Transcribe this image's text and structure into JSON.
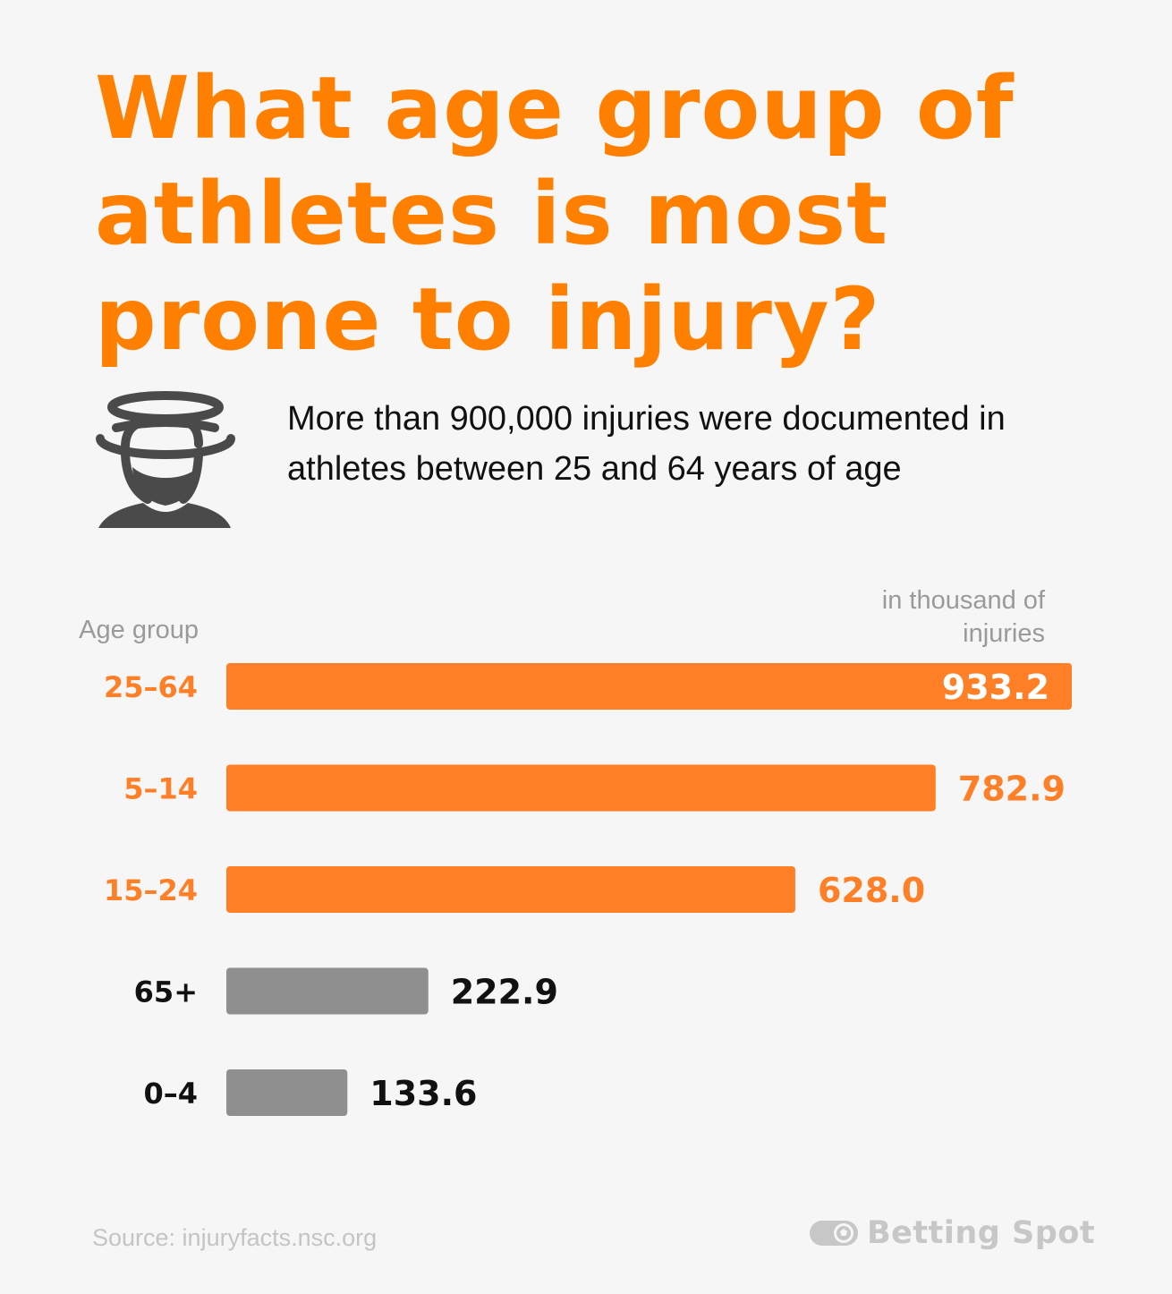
{
  "header": {
    "title": "What age group of athletes is most prone to injury?",
    "subtitle": "More than 900,000 injuries were documented in athletes between 25 and 64 years of age"
  },
  "icons": {
    "head": "dizzy-head-icon",
    "brand": "football-ticket-icon"
  },
  "colors": {
    "highlight": "#ff7f27",
    "title": "#ff8000",
    "muted": "#8f8f8f",
    "background": "#f6f6f6"
  },
  "chart_data": {
    "type": "bar",
    "orientation": "horizontal",
    "xlabel": "in thousand of injuries",
    "ylabel": "Age group",
    "categories": [
      "25–64",
      "5–14",
      "15–24",
      "65+",
      "0–4"
    ],
    "values": [
      933.2,
      782.9,
      628.0,
      222.9,
      133.6
    ],
    "value_labels": [
      "933.2",
      "782.9",
      "628.0",
      "222.9",
      "133.6"
    ],
    "highlighted": [
      true,
      true,
      true,
      false,
      false
    ],
    "xlim": [
      0,
      933.2
    ],
    "grid": false,
    "legend": "none"
  },
  "footer": {
    "source": "Source:  injuryfacts.nsc.org",
    "brand": "Betting Spot"
  }
}
